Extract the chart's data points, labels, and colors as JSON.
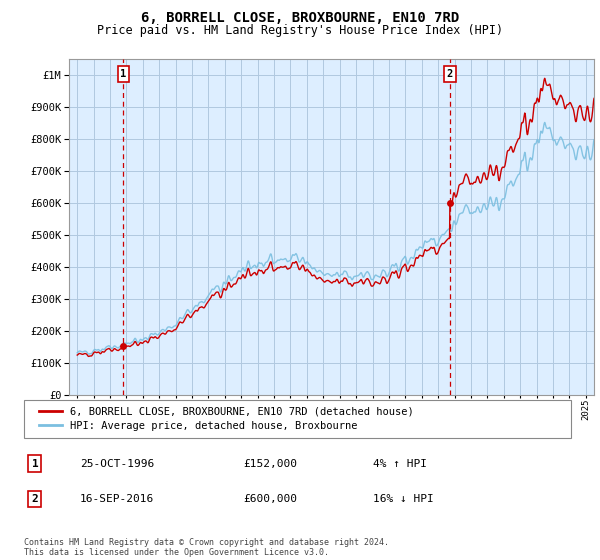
{
  "title": "6, BORRELL CLOSE, BROXBOURNE, EN10 7RD",
  "subtitle": "Price paid vs. HM Land Registry's House Price Index (HPI)",
  "ylim": [
    0,
    1050000
  ],
  "yticks": [
    0,
    100000,
    200000,
    300000,
    400000,
    500000,
    600000,
    700000,
    800000,
    900000,
    1000000
  ],
  "ytick_labels": [
    "£0",
    "£100K",
    "£200K",
    "£300K",
    "£400K",
    "£500K",
    "£600K",
    "£700K",
    "£800K",
    "£900K",
    "£1M"
  ],
  "sale1_year": 1996.82,
  "sale1_price": 152000,
  "sale2_year": 2016.71,
  "sale2_price": 600000,
  "xmin": 1993.5,
  "xmax": 2025.5,
  "hpi_color": "#7bbfe0",
  "price_color": "#cc0000",
  "vline_color": "#cc0000",
  "bg_color": "#ddeeff",
  "grid_color": "#b0c8e0",
  "legend_label1": "6, BORRELL CLOSE, BROXBOURNE, EN10 7RD (detached house)",
  "legend_label2": "HPI: Average price, detached house, Broxbourne",
  "table_row1": [
    "1",
    "25-OCT-1996",
    "£152,000",
    "4% ↑ HPI"
  ],
  "table_row2": [
    "2",
    "16-SEP-2016",
    "£600,000",
    "16% ↓ HPI"
  ],
  "footer": "Contains HM Land Registry data © Crown copyright and database right 2024.\nThis data is licensed under the Open Government Licence v3.0.",
  "title_fontsize": 10,
  "subtitle_fontsize": 8.5
}
